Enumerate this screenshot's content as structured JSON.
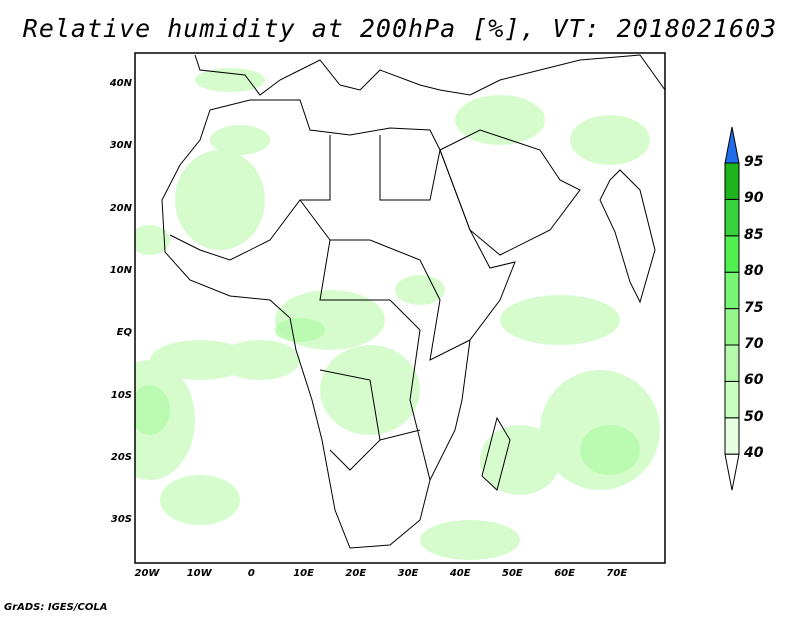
{
  "title": "Relative humidity at 200hPa [%], VT: 2018021603",
  "lat_labels": [
    "40N",
    "30N",
    "20N",
    "10N",
    "EQ",
    "10S",
    "20S",
    "30S"
  ],
  "lon_labels": [
    "20W",
    "10W",
    "0",
    "10E",
    "20E",
    "30E",
    "40E",
    "50E",
    "60E",
    "70E"
  ],
  "colorbar": {
    "levels": [
      "40",
      "50",
      "60",
      "70",
      "75",
      "80",
      "85",
      "90",
      "95"
    ],
    "colors": [
      "#e6ffe1",
      "#c8ffbe",
      "#b4faaa",
      "#96f58c",
      "#78f573",
      "#50f050",
      "#37d23c",
      "#1eb41e"
    ],
    "over_color": "#1e6eeb",
    "under_color": "#ffffff"
  },
  "credit": "GrADS: IGES/COLA"
}
